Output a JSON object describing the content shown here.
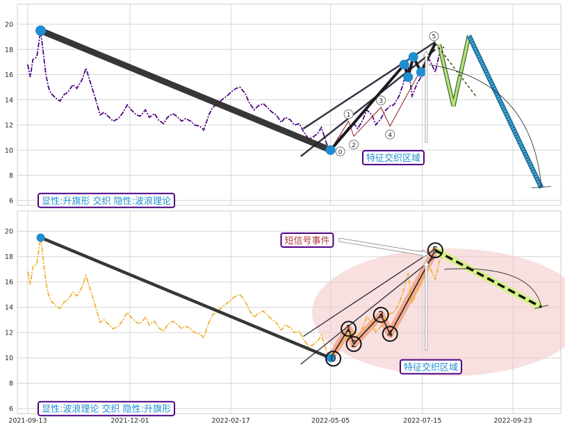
{
  "chart_data": {
    "type": "line",
    "x_axis": {
      "ticks": [
        "2021-09-13",
        "2021-12-01",
        "2022-02-17",
        "2022-05-05",
        "2022-07-15",
        "2022-09-23"
      ],
      "range": [
        "2021-09-05",
        "2022-10-30"
      ]
    },
    "y_axis": {
      "ticks": [
        6,
        8,
        10,
        12,
        14,
        16,
        18,
        20
      ],
      "range": [
        5.6,
        21.6
      ]
    },
    "grid": true,
    "price_series": {
      "x": [
        "2021-09-13",
        "2021-09-15",
        "2021-09-17",
        "2021-09-20",
        "2021-09-23",
        "2021-09-27",
        "2021-09-29",
        "2021-10-01",
        "2021-10-03",
        "2021-10-05",
        "2021-10-08",
        "2021-10-11",
        "2021-10-14",
        "2021-10-18",
        "2021-10-21",
        "2021-10-25",
        "2021-10-28",
        "2021-11-01",
        "2021-11-04",
        "2021-11-08",
        "2021-11-11",
        "2021-11-15",
        "2021-11-18",
        "2021-11-22",
        "2021-11-25",
        "2021-11-29",
        "2021-12-02",
        "2021-12-06",
        "2021-12-09",
        "2021-12-13",
        "2021-12-16",
        "2021-12-20",
        "2021-12-23",
        "2021-12-27",
        "2021-12-30",
        "2022-01-03",
        "2022-01-06",
        "2022-01-10",
        "2022-01-13",
        "2022-01-17",
        "2022-01-20",
        "2022-01-24",
        "2022-01-27",
        "2022-01-31",
        "2022-02-03",
        "2022-02-07",
        "2022-02-10",
        "2022-02-14",
        "2022-02-17",
        "2022-02-21",
        "2022-02-24",
        "2022-02-28",
        "2022-03-03",
        "2022-03-07",
        "2022-03-10",
        "2022-03-14",
        "2022-03-17",
        "2022-03-21",
        "2022-03-24",
        "2022-03-28",
        "2022-03-31",
        "2022-04-04",
        "2022-04-07",
        "2022-04-11",
        "2022-04-14",
        "2022-04-18",
        "2022-04-21",
        "2022-04-25",
        "2022-04-28",
        "2022-05-02",
        "2022-05-05",
        "2022-05-09",
        "2022-05-12",
        "2022-05-16",
        "2022-05-19",
        "2022-05-23",
        "2022-05-26",
        "2022-05-30",
        "2022-06-02",
        "2022-06-06",
        "2022-06-09",
        "2022-06-13",
        "2022-06-16",
        "2022-06-20",
        "2022-06-23",
        "2022-06-27",
        "2022-06-30",
        "2022-07-04",
        "2022-07-07",
        "2022-07-11",
        "2022-07-14",
        "2022-07-18",
        "2022-07-21",
        "2022-07-25",
        "2022-07-28",
        "2022-08-01"
      ],
      "y": [
        16.8,
        15.8,
        17.2,
        17.4,
        19.5,
        16.0,
        15.0,
        14.5,
        14.3,
        14.1,
        13.9,
        14.4,
        14.6,
        15.2,
        14.9,
        15.6,
        16.5,
        15.2,
        14.2,
        12.8,
        13.0,
        12.6,
        12.3,
        12.5,
        12.9,
        13.6,
        13.2,
        12.8,
        12.7,
        13.2,
        12.6,
        12.9,
        12.4,
        12.1,
        12.6,
        12.9,
        12.7,
        12.3,
        12.5,
        12.3,
        12.0,
        11.9,
        11.6,
        12.8,
        13.4,
        13.7,
        14.0,
        14.3,
        14.6,
        14.9,
        15.0,
        14.5,
        13.8,
        13.2,
        13.5,
        13.7,
        13.4,
        13.0,
        12.8,
        12.2,
        12.6,
        12.4,
        12.0,
        12.1,
        11.5,
        10.9,
        11.0,
        11.3,
        11.8,
        10.5,
        10.0,
        10.6,
        11.0,
        11.4,
        11.8,
        12.1,
        11.7,
        12.4,
        13.2,
        12.8,
        12.0,
        12.5,
        13.1,
        13.5,
        13.6,
        14.3,
        15.2,
        16.7,
        14.3,
        15.3,
        15.8,
        17.4,
        17.1,
        16.2,
        17.6,
        18.3
      ]
    },
    "price_series_colors": [
      "#4b0082",
      "#f0b030"
    ],
    "wave_points": [
      {
        "label": "0",
        "x": "2022-05-05",
        "y": 10.0
      },
      {
        "label": "1",
        "x": "2022-05-19",
        "y": 12.3
      },
      {
        "label": "2",
        "x": "2022-05-23",
        "y": 11.1
      },
      {
        "label": "3",
        "x": "2022-06-13",
        "y": 13.4
      },
      {
        "label": "4",
        "x": "2022-06-20",
        "y": 11.9
      },
      {
        "label": "5",
        "x": "2022-07-25",
        "y": 18.5
      }
    ],
    "flag_highs": [
      {
        "x": "2022-07-01",
        "y": 16.8
      },
      {
        "x": "2022-07-04",
        "y": 15.8
      },
      {
        "x": "2022-07-08",
        "y": 17.4
      },
      {
        "x": "2022-07-14",
        "y": 16.2
      }
    ],
    "start_point": {
      "x": "2021-09-23",
      "y": 19.5
    },
    "projection_end": {
      "x": "2022-10-15",
      "y": 7.0
    },
    "projection_end_bottom": {
      "x": "2022-10-15",
      "y": 14.0
    },
    "zigzag": [
      {
        "x": "2022-07-28",
        "y": 18.4
      },
      {
        "x": "2022-08-08",
        "y": 13.5
      },
      {
        "x": "2022-08-20",
        "y": 19.1
      },
      {
        "x": "2022-10-15",
        "y": 7.0
      }
    ],
    "zone_marker_x": "2022-07-18",
    "panels": [
      {
        "caption": "显性:升旗形 交织 隐性:波浪理论",
        "zone_label": "特征交织区域"
      },
      {
        "caption": "显性:波浪理论 交织 隐性:升旗形",
        "zone_label": "特征交织区域",
        "event_label": "短信号事件"
      }
    ]
  }
}
